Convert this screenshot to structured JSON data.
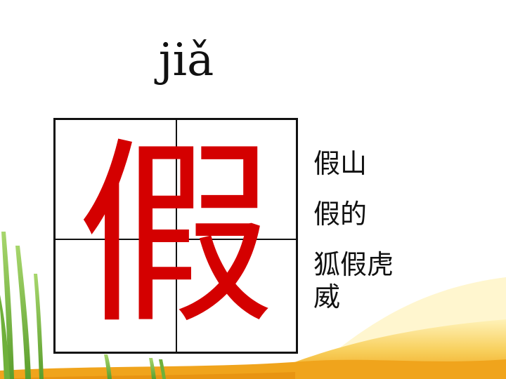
{
  "slide": {
    "pinyin": "jiǎ",
    "character": "假",
    "words": [
      "假山",
      "假的",
      "狐假虎威"
    ]
  },
  "colors": {
    "character": "#d40000",
    "background": "#ffffff",
    "grass": "#7cc142",
    "sand": "#f3b21c"
  },
  "icons": {
    "decoration": "grass-and-sand-illustration"
  }
}
